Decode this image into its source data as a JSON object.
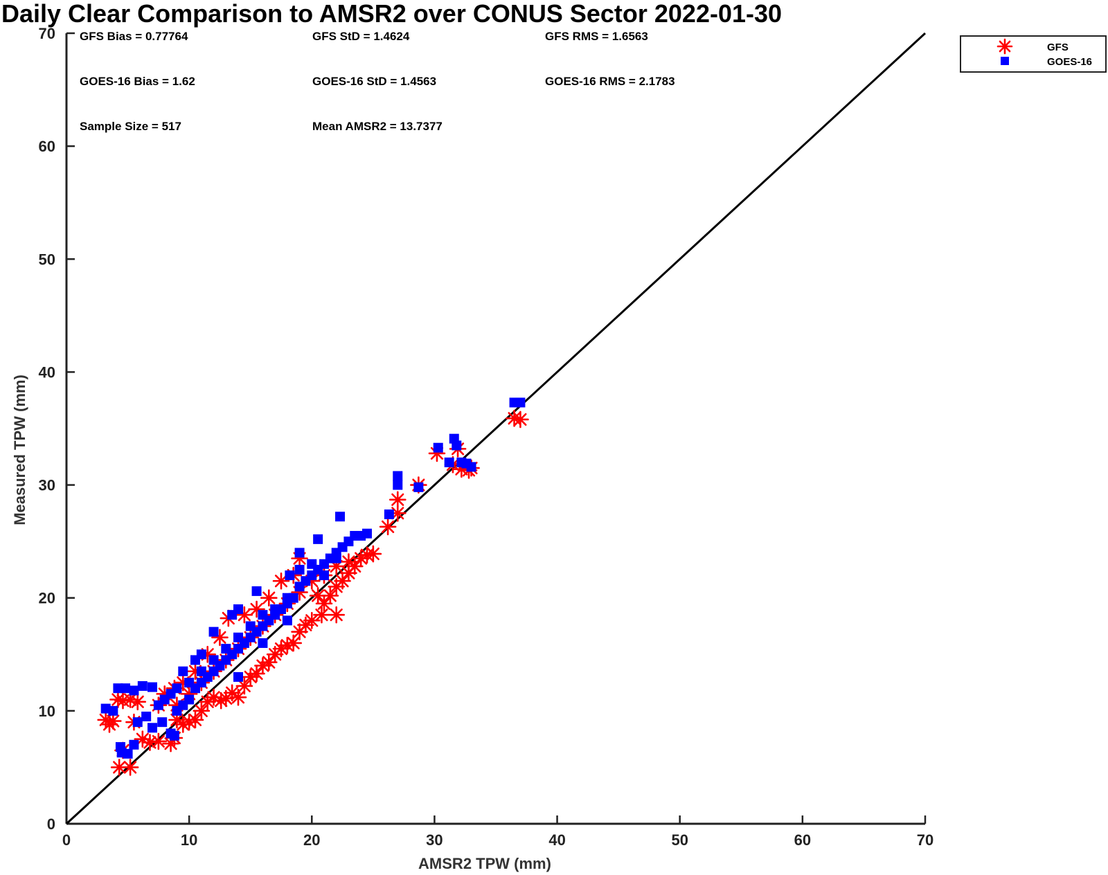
{
  "chart_data": {
    "type": "scatter",
    "title": "Daily Clear Comparison to AMSR2 over CONUS Sector 2022-01-30",
    "xlabel": "AMSR2 TPW (mm)",
    "ylabel": "Measured TPW (mm)",
    "xlim": [
      0,
      70
    ],
    "ylim": [
      0,
      70
    ],
    "xticks": [
      "0",
      "10",
      "20",
      "30",
      "40",
      "50",
      "60",
      "70"
    ],
    "yticks": [
      "0",
      "10",
      "20",
      "30",
      "40",
      "50",
      "60",
      "70"
    ],
    "grid": false,
    "legend_position": "outside top-right",
    "reference_line": {
      "x": [
        0,
        70
      ],
      "y": [
        0,
        70
      ]
    },
    "stats": {
      "gfs_bias": "GFS Bias = 0.77764",
      "gfs_std": "GFS StD = 1.4624",
      "gfs_rms": "GFS RMS = 1.6563",
      "goes_bias": "GOES-16 Bias = 1.62",
      "goes_std": "GOES-16 StD = 1.4563",
      "goes_rms": "GOES-16 RMS = 2.1783",
      "sample_size": "Sample Size = 517",
      "mean_amsr2": "Mean AMSR2 = 13.7377"
    },
    "series": [
      {
        "name": "GFS",
        "marker": "asterisk",
        "color": "#ff0000",
        "points": [
          [
            3.2,
            9.2
          ],
          [
            3.5,
            8.8
          ],
          [
            3.8,
            9.1
          ],
          [
            4.2,
            11.0
          ],
          [
            4.6,
            10.9
          ],
          [
            5.2,
            11.0
          ],
          [
            5.8,
            10.8
          ],
          [
            4.3,
            5.0
          ],
          [
            5.2,
            5.0
          ],
          [
            4.6,
            6.5
          ],
          [
            5.5,
            9.0
          ],
          [
            6.2,
            7.5
          ],
          [
            6.8,
            7.2
          ],
          [
            7.5,
            7.3
          ],
          [
            8.5,
            7.1
          ],
          [
            8.8,
            7.6
          ],
          [
            9.0,
            9.2
          ],
          [
            9.5,
            8.8
          ],
          [
            10.0,
            9.0
          ],
          [
            10.5,
            9.2
          ],
          [
            11.0,
            10.0
          ],
          [
            11.5,
            10.8
          ],
          [
            12.0,
            11.2
          ],
          [
            12.6,
            10.9
          ],
          [
            13.0,
            11.1
          ],
          [
            13.5,
            11.6
          ],
          [
            14.0,
            11.2
          ],
          [
            14.5,
            12.2
          ],
          [
            15.0,
            13.0
          ],
          [
            15.5,
            13.3
          ],
          [
            16.0,
            14.0
          ],
          [
            16.5,
            14.3
          ],
          [
            17.0,
            15.0
          ],
          [
            17.5,
            15.5
          ],
          [
            18.0,
            15.8
          ],
          [
            18.5,
            16.0
          ],
          [
            19.0,
            17.0
          ],
          [
            19.5,
            17.6
          ],
          [
            20.0,
            18.0
          ],
          [
            20.8,
            18.5
          ],
          [
            21.0,
            19.5
          ],
          [
            21.5,
            20.2
          ],
          [
            22.0,
            21.0
          ],
          [
            22.5,
            21.5
          ],
          [
            23.0,
            22.2
          ],
          [
            23.5,
            22.8
          ],
          [
            24.0,
            23.5
          ],
          [
            24.5,
            23.8
          ],
          [
            25.0,
            23.9
          ],
          [
            19.0,
            23.5
          ],
          [
            18.5,
            22.0
          ],
          [
            17.5,
            21.5
          ],
          [
            16.5,
            20.0
          ],
          [
            15.5,
            19.0
          ],
          [
            14.5,
            18.5
          ],
          [
            13.2,
            18.2
          ],
          [
            12.5,
            16.5
          ],
          [
            11.5,
            15.0
          ],
          [
            10.5,
            13.5
          ],
          [
            9.5,
            12.5
          ],
          [
            8.8,
            12.0
          ],
          [
            8.0,
            11.5
          ],
          [
            7.5,
            10.5
          ],
          [
            9.0,
            10.5
          ],
          [
            10.0,
            11.5
          ],
          [
            11.0,
            12.5
          ],
          [
            12.0,
            13.5
          ],
          [
            13.0,
            14.5
          ],
          [
            14.0,
            15.5
          ],
          [
            15.0,
            16.5
          ],
          [
            16.0,
            17.5
          ],
          [
            17.0,
            18.5
          ],
          [
            18.0,
            19.5
          ],
          [
            19.0,
            20.5
          ],
          [
            20.0,
            21.5
          ],
          [
            21.0,
            22.0
          ],
          [
            22.0,
            22.8
          ],
          [
            23.0,
            23.2
          ],
          [
            20.5,
            20.2
          ],
          [
            22.0,
            18.5
          ],
          [
            26.2,
            26.3
          ],
          [
            27.0,
            27.5
          ],
          [
            27.0,
            28.7
          ],
          [
            28.7,
            30.0
          ],
          [
            30.2,
            32.8
          ],
          [
            31.5,
            31.8
          ],
          [
            31.9,
            33.2
          ],
          [
            32.2,
            31.4
          ],
          [
            32.8,
            31.3
          ],
          [
            33.0,
            31.5
          ],
          [
            36.5,
            35.9
          ],
          [
            37.0,
            35.8
          ]
        ]
      },
      {
        "name": "GOES-16",
        "marker": "square",
        "color": "#0000ff",
        "points": [
          [
            3.2,
            10.2
          ],
          [
            3.8,
            10.0
          ],
          [
            4.2,
            12.0
          ],
          [
            4.8,
            12.0
          ],
          [
            5.5,
            11.8
          ],
          [
            6.2,
            12.2
          ],
          [
            7.0,
            12.1
          ],
          [
            4.4,
            6.8
          ],
          [
            5.0,
            6.2
          ],
          [
            5.5,
            7.0
          ],
          [
            4.5,
            6.3
          ],
          [
            5.8,
            9.0
          ],
          [
            6.5,
            9.5
          ],
          [
            7.0,
            8.5
          ],
          [
            7.8,
            9.0
          ],
          [
            8.5,
            8.0
          ],
          [
            8.8,
            7.8
          ],
          [
            9.0,
            10.0
          ],
          [
            9.5,
            10.5
          ],
          [
            10.0,
            11.0
          ],
          [
            10.5,
            12.0
          ],
          [
            11.0,
            12.5
          ],
          [
            11.5,
            13.0
          ],
          [
            12.0,
            13.5
          ],
          [
            12.5,
            14.0
          ],
          [
            13.0,
            14.5
          ],
          [
            13.5,
            15.0
          ],
          [
            14.0,
            15.5
          ],
          [
            14.5,
            16.0
          ],
          [
            15.0,
            16.5
          ],
          [
            15.5,
            17.0
          ],
          [
            16.0,
            17.5
          ],
          [
            16.5,
            18.0
          ],
          [
            17.0,
            18.5
          ],
          [
            17.5,
            19.0
          ],
          [
            18.0,
            19.5
          ],
          [
            18.5,
            20.0
          ],
          [
            19.0,
            21.0
          ],
          [
            19.5,
            21.5
          ],
          [
            20.0,
            22.0
          ],
          [
            20.5,
            22.5
          ],
          [
            21.0,
            23.0
          ],
          [
            21.5,
            23.5
          ],
          [
            22.0,
            24.0
          ],
          [
            22.5,
            24.5
          ],
          [
            23.0,
            25.0
          ],
          [
            23.5,
            25.5
          ],
          [
            24.0,
            25.5
          ],
          [
            24.5,
            25.7
          ],
          [
            22.3,
            27.2
          ],
          [
            20.5,
            25.2
          ],
          [
            19.0,
            24.0
          ],
          [
            18.2,
            22.0
          ],
          [
            15.5,
            20.6
          ],
          [
            14.0,
            19.0
          ],
          [
            13.5,
            18.5
          ],
          [
            12.0,
            17.0
          ],
          [
            11.0,
            15.0
          ],
          [
            10.5,
            14.5
          ],
          [
            9.5,
            13.5
          ],
          [
            8.0,
            11.0
          ],
          [
            7.5,
            10.5
          ],
          [
            8.5,
            11.5
          ],
          [
            9.0,
            12.0
          ],
          [
            10.0,
            12.5
          ],
          [
            11.0,
            13.5
          ],
          [
            12.0,
            14.5
          ],
          [
            13.0,
            15.5
          ],
          [
            14.0,
            16.5
          ],
          [
            15.0,
            17.5
          ],
          [
            16.0,
            18.5
          ],
          [
            17.0,
            19.0
          ],
          [
            18.0,
            20.0
          ],
          [
            19.0,
            22.5
          ],
          [
            20.0,
            23.0
          ],
          [
            21.0,
            22.0
          ],
          [
            22.0,
            23.5
          ],
          [
            14.0,
            13.0
          ],
          [
            16.0,
            16.0
          ],
          [
            18.0,
            18.0
          ],
          [
            26.3,
            27.4
          ],
          [
            27.0,
            30.0
          ],
          [
            27.0,
            30.8
          ],
          [
            28.7,
            29.8
          ],
          [
            30.3,
            33.3
          ],
          [
            31.2,
            32.0
          ],
          [
            31.6,
            34.1
          ],
          [
            31.8,
            33.5
          ],
          [
            32.2,
            32.0
          ],
          [
            32.6,
            31.9
          ],
          [
            33.0,
            31.6
          ],
          [
            36.5,
            37.3
          ],
          [
            37.0,
            37.3
          ]
        ]
      }
    ]
  }
}
